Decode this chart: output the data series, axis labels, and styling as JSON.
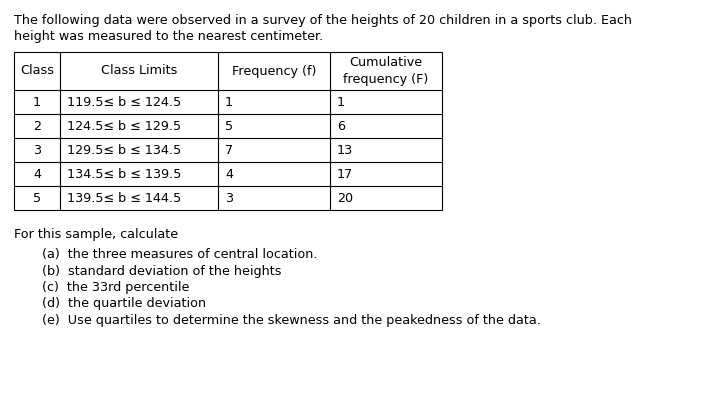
{
  "title_line1": "The following data were observed in a survey of the heights of 20 children in a sports club. Each",
  "title_line2": "height was measured to the nearest centimeter.",
  "col_headers_line1": [
    "Class",
    "Class Limits",
    "Frequency (f)",
    "Cumulative"
  ],
  "col_headers_line2": [
    "",
    "",
    "",
    "frequency (F)"
  ],
  "rows": [
    [
      "1",
      "119.5≤ b ≤ 124.5",
      "1",
      "1"
    ],
    [
      "2",
      "124.5≤ b ≤ 129.5",
      "5",
      "6"
    ],
    [
      "3",
      "129.5≤ b ≤ 134.5",
      "7",
      "13"
    ],
    [
      "4",
      "134.5≤ b ≤ 139.5",
      "4",
      "17"
    ],
    [
      "5",
      "139.5≤ b ≤ 144.5",
      "3",
      "20"
    ]
  ],
  "footer_title": "For this sample, calculate",
  "footer_items": [
    "(a)  the three measures of central location.",
    "(b)  standard deviation of the heights",
    "(c)  the 33rd percentile",
    "(d)  the quartile deviation",
    "(e)  Use quartiles to determine the skewness and the peakedness of the data."
  ],
  "bg_color": "#ffffff",
  "text_color": "#000000",
  "title_fontsize": 9.2,
  "table_fontsize": 9.2,
  "footer_fontsize": 9.2
}
